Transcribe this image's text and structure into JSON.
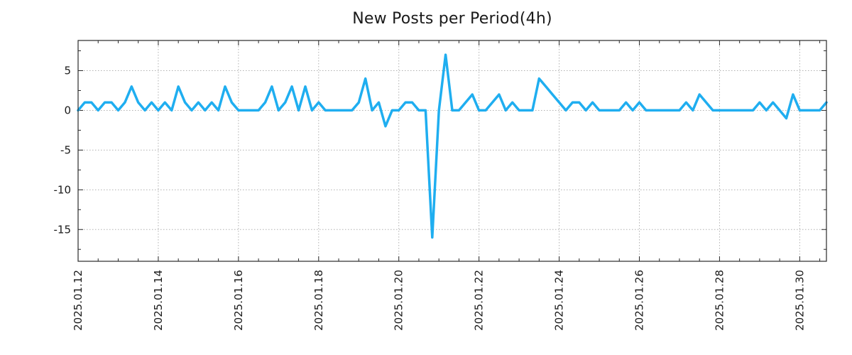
{
  "title": "New Posts per Period(4h)",
  "chart_data": {
    "type": "line",
    "title": "New Posts per Period(4h)",
    "series_name": "New Posts",
    "period_hours": 4,
    "start_label": "2025.01.12",
    "values": [
      0,
      1,
      1,
      0,
      1,
      1,
      0,
      1,
      3,
      1,
      0,
      1,
      0,
      1,
      0,
      3,
      1,
      0,
      1,
      0,
      1,
      0,
      3,
      1,
      0,
      0,
      0,
      0,
      1,
      3,
      0,
      1,
      3,
      0,
      3,
      0,
      1,
      0,
      0,
      0,
      0,
      0,
      1,
      4,
      0,
      1,
      -2,
      0,
      0,
      1,
      1,
      0,
      0,
      -16,
      0,
      7,
      0,
      0,
      1,
      2,
      0,
      0,
      1,
      2,
      0,
      1,
      0,
      0,
      0,
      4,
      3,
      2,
      1,
      0,
      1,
      1,
      0,
      1,
      0,
      0,
      0,
      0,
      1,
      0,
      1,
      0,
      0,
      0,
      0,
      0,
      0,
      1,
      0,
      2,
      1,
      0,
      0,
      0,
      0,
      0,
      0,
      0,
      1,
      0,
      1,
      0,
      -1,
      2,
      0,
      0,
      0,
      0,
      1
    ],
    "x_major_tick_labels": [
      "2025.01.12",
      "2025.01.14",
      "2025.01.16",
      "2025.01.18",
      "2025.01.20",
      "2025.01.22",
      "2025.01.24",
      "2025.01.26",
      "2025.01.28",
      "2025.01.30"
    ],
    "x_major_every": 12,
    "x_minor_every": 3,
    "y_tick_labels": [
      "5",
      "0",
      "-5",
      "-10",
      "-15"
    ],
    "y_ticks": [
      5,
      0,
      -5,
      -10,
      -15
    ],
    "y_minor_ticks": [
      7.5,
      2.5,
      -2.5,
      -7.5,
      -12.5,
      -17.5
    ],
    "ylim": [
      -19,
      8.8
    ],
    "grid": true,
    "legend": "none",
    "line_color": "#1faef0",
    "grid_color": "#b0b0b0",
    "axis_color": "#2a2a2a",
    "text_color": "#1a1a1a"
  }
}
